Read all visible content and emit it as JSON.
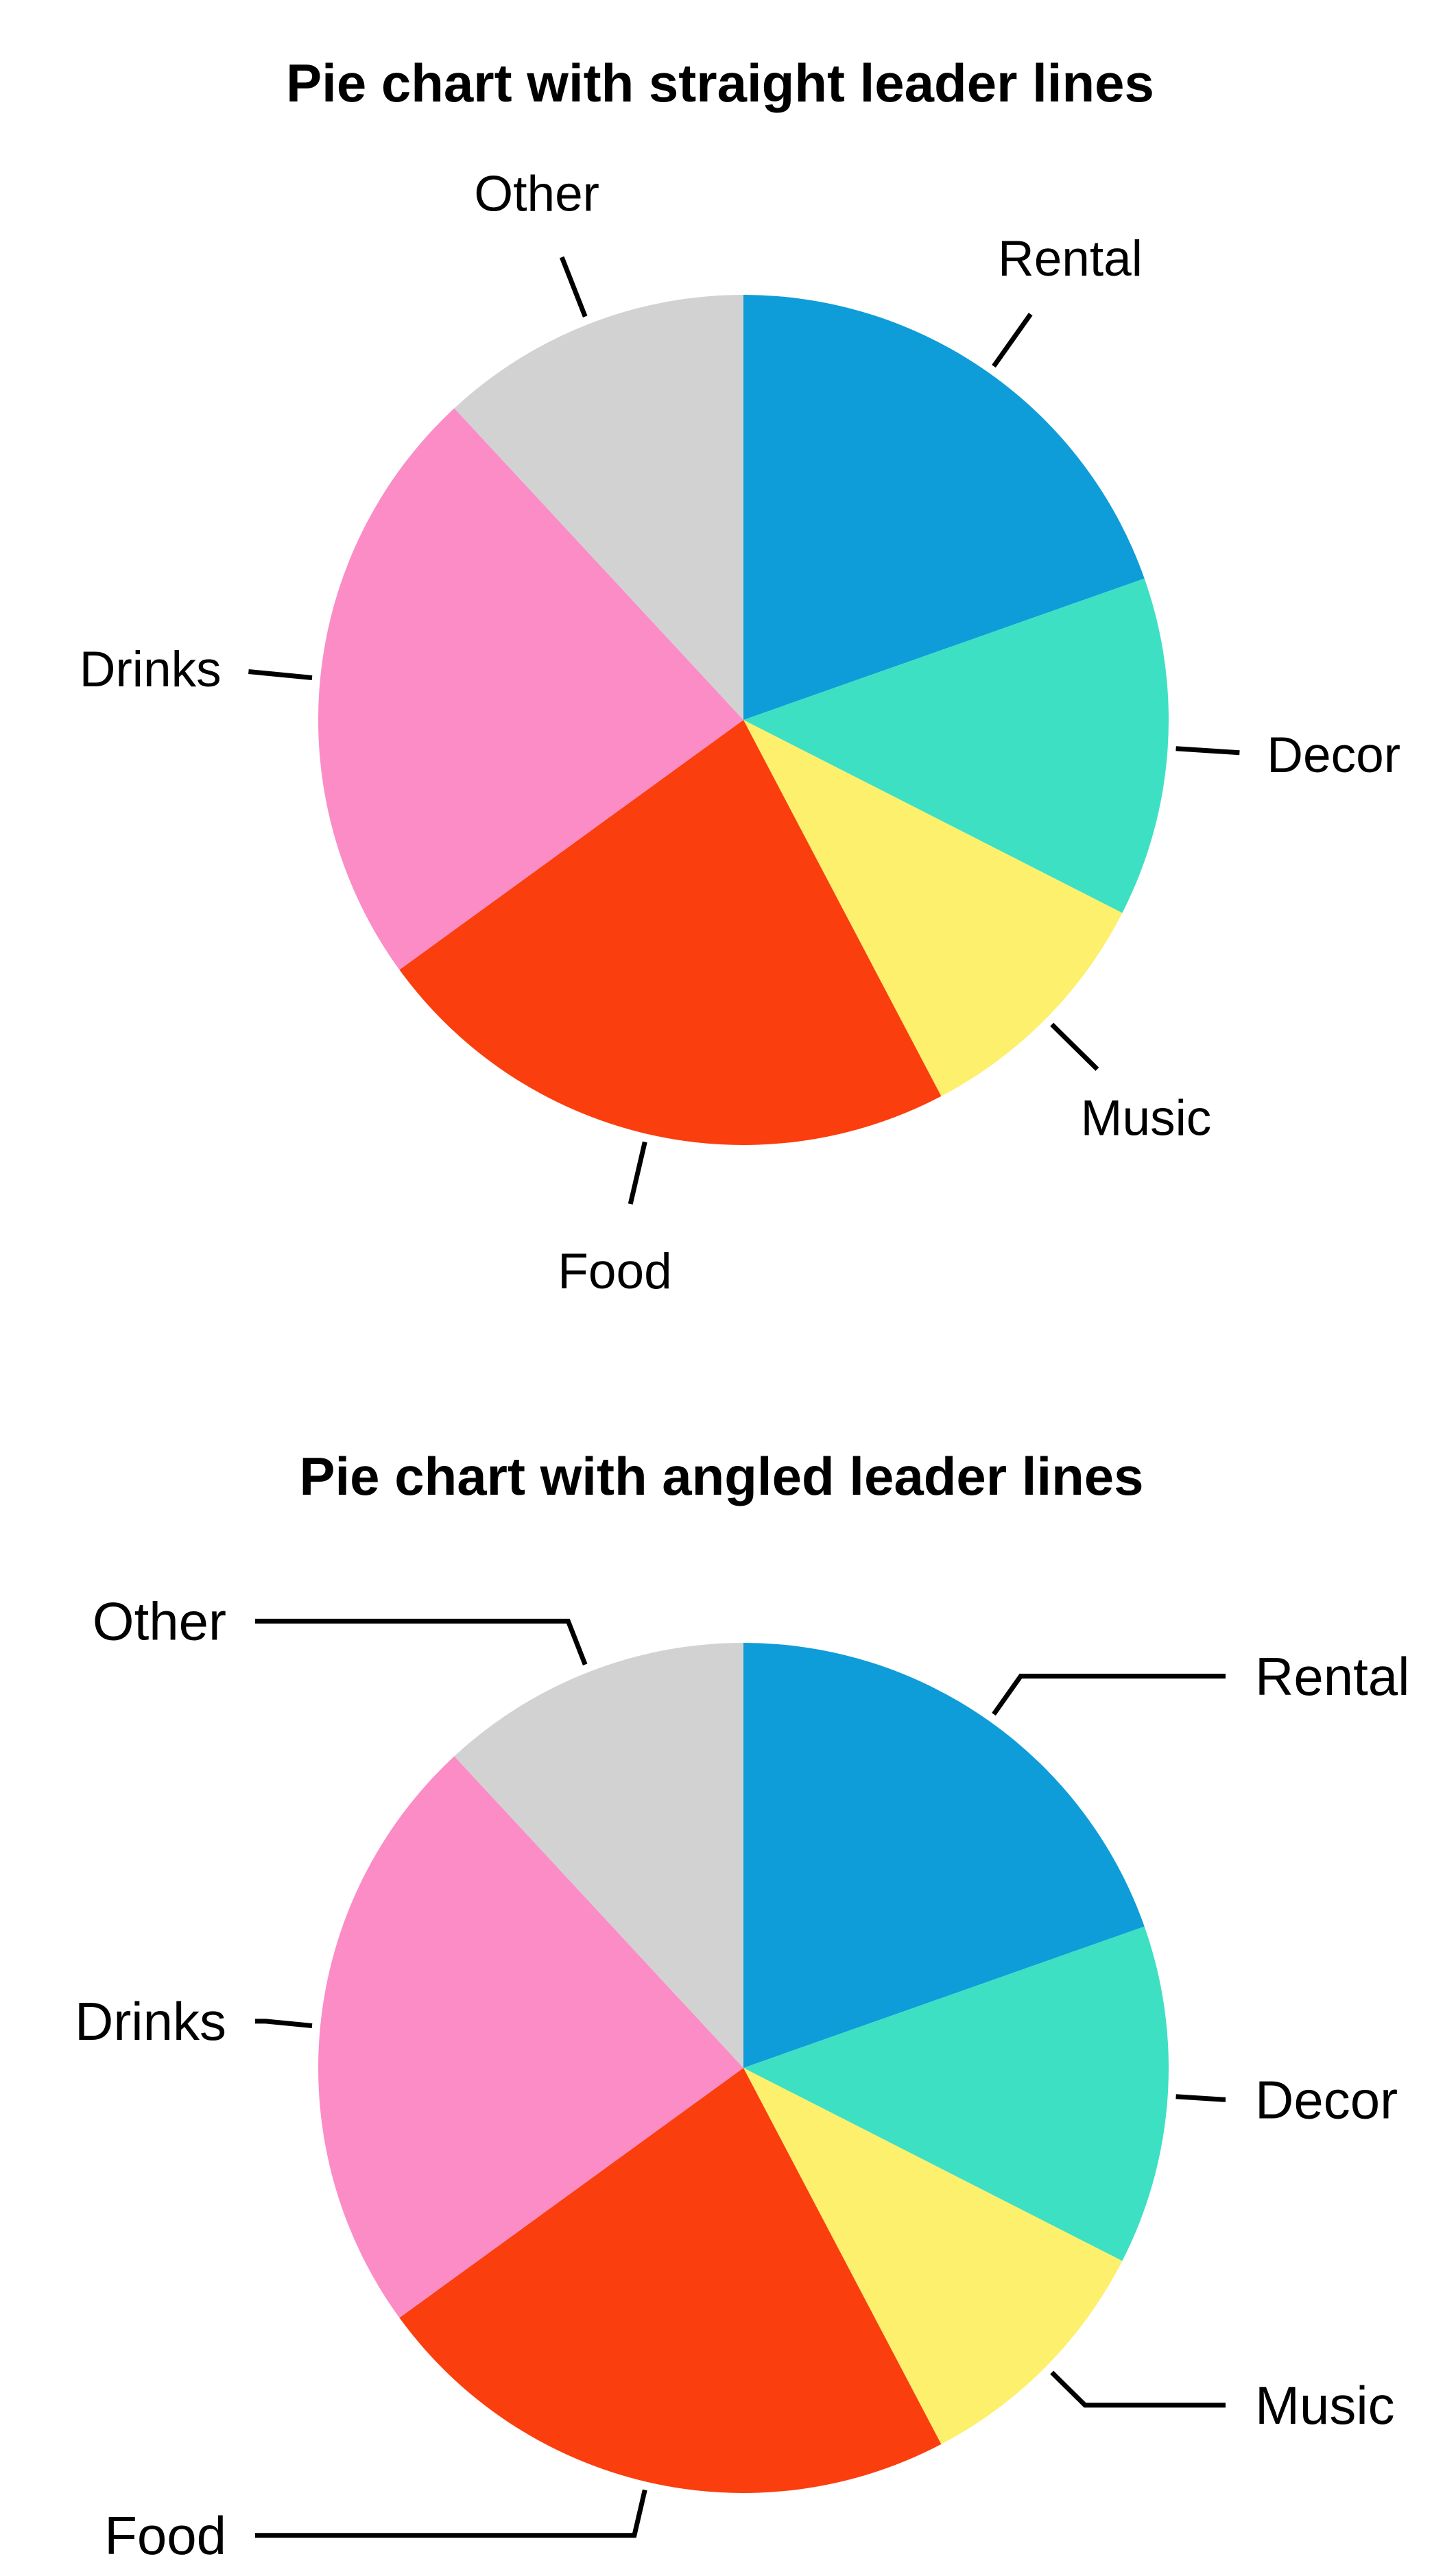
{
  "figure": {
    "background": "#FFFFFF",
    "text_color": "#000000"
  },
  "chart_data": [
    {
      "type": "pie",
      "title": "Pie chart with straight leader lines",
      "leader_style": "straight",
      "labels": [
        "Rental",
        "Decor",
        "Music",
        "Food",
        "Drinks",
        "Other"
      ],
      "values": [
        19.6,
        12.9,
        9.8,
        22.7,
        23.1,
        11.9
      ],
      "values_note": "percent of whole, estimated from slice angles (no numeric labels shown in image)",
      "colors": [
        "#0E9DD8",
        "#3EE0C4",
        "#FDF06D",
        "#FB3E0E",
        "#FB8CC6",
        "#D2D2D2"
      ],
      "start_angle_deg": 0,
      "direction": "clockwise",
      "legend": "none",
      "label_placement": "outside with straight leader lines",
      "leader_color": "#000000",
      "text_color": "#000000"
    },
    {
      "type": "pie",
      "title": "Pie chart with angled leader lines",
      "leader_style": "angled",
      "labels": [
        "Rental",
        "Decor",
        "Music",
        "Food",
        "Drinks",
        "Other"
      ],
      "values": [
        19.6,
        12.9,
        9.8,
        22.7,
        23.1,
        11.9
      ],
      "values_note": "percent of whole, estimated from slice angles (no numeric labels shown in image)",
      "colors": [
        "#0E9DD8",
        "#3EE0C4",
        "#FDF06D",
        "#FB3E0E",
        "#FB8CC6",
        "#D2D2D2"
      ],
      "start_angle_deg": 0,
      "direction": "clockwise",
      "legend": "none",
      "label_placement": "outside with angled (elbow) leader lines",
      "leader_color": "#000000",
      "text_color": "#000000"
    }
  ]
}
